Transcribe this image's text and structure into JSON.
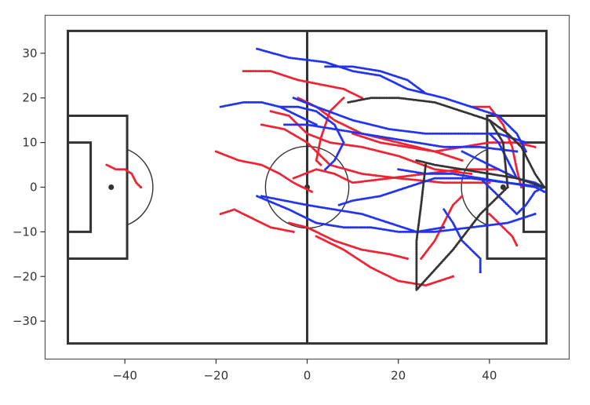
{
  "chart_data": {
    "type": "scatter",
    "title": "",
    "xlabel": "",
    "ylabel": "",
    "xlim": [
      -57.5,
      57.5
    ],
    "ylim": [
      -38.5,
      38.5
    ],
    "x_ticks": [
      -40,
      -20,
      0,
      20,
      40
    ],
    "y_ticks": [
      30,
      20,
      10,
      0,
      -10,
      -20,
      -30
    ],
    "x_tick_labels": [
      "−40",
      "−20",
      "0",
      "20",
      "40"
    ],
    "y_tick_labels": [
      "30",
      "20",
      "10",
      "0",
      "−10",
      "−20",
      "−30"
    ],
    "grid": false,
    "legend": "none",
    "pitch": {
      "length": 105,
      "width": 70,
      "penalty_area_depth": 13,
      "penalty_area_half_width": 16,
      "goal_area_depth": 5,
      "goal_area_half_width": 10,
      "center_circle_radius": 9.15,
      "penalty_spot_distance": 9.5,
      "line_color": "#333333"
    },
    "series": [
      {
        "color": "#ee2233",
        "marker": "dots",
        "tracks": [
          [
            [
              -44,
              5
            ],
            [
              -42,
              4
            ],
            [
              -40,
              4
            ],
            [
              -38.5,
              3
            ],
            [
              -37.5,
              1
            ],
            [
              -36.5,
              0
            ],
            [
              -36.5,
              0
            ]
          ],
          [
            [
              -20,
              8
            ],
            [
              -15,
              6
            ],
            [
              -10,
              5
            ],
            [
              -6,
              3
            ],
            [
              -3,
              1
            ],
            [
              1,
              -1
            ]
          ],
          [
            [
              -19,
              -6
            ],
            [
              -16,
              -5
            ],
            [
              -12,
              -7
            ],
            [
              -8,
              -9
            ],
            [
              -3,
              -10
            ]
          ],
          [
            [
              -14,
              26
            ],
            [
              -8,
              26
            ],
            [
              -2,
              24
            ],
            [
              3,
              23
            ],
            [
              8,
              22
            ],
            [
              12,
              20
            ]
          ],
          [
            [
              -2,
              20
            ],
            [
              2,
              18
            ],
            [
              6,
              15
            ],
            [
              12,
              12
            ],
            [
              20,
              10
            ],
            [
              28,
              8
            ],
            [
              34,
              6
            ]
          ],
          [
            [
              -8,
              17
            ],
            [
              -4,
              16
            ],
            [
              0,
              12
            ],
            [
              5,
              10
            ],
            [
              12,
              9
            ],
            [
              20,
              7
            ],
            [
              28,
              4
            ],
            [
              36,
              3
            ]
          ],
          [
            [
              -10,
              14
            ],
            [
              -5,
              13
            ],
            [
              0,
              10
            ],
            [
              5,
              5
            ],
            [
              12,
              3
            ],
            [
              20,
              2
            ],
            [
              30,
              1
            ],
            [
              40,
              1
            ]
          ],
          [
            [
              -3,
              2
            ],
            [
              2,
              4
            ],
            [
              6,
              3
            ],
            [
              10,
              1
            ],
            [
              18,
              2
            ],
            [
              26,
              3
            ],
            [
              34,
              4
            ],
            [
              42,
              4
            ]
          ],
          [
            [
              8,
              20
            ],
            [
              5,
              17
            ],
            [
              3,
              11
            ],
            [
              2,
              6
            ],
            [
              3,
              5
            ]
          ],
          [
            [
              2,
              -11
            ],
            [
              8,
              -14
            ],
            [
              14,
              -18
            ],
            [
              20,
              -21
            ],
            [
              26,
              -22
            ],
            [
              32,
              -20
            ]
          ],
          [
            [
              -4,
              -8
            ],
            [
              0,
              -9
            ],
            [
              6,
              -12
            ],
            [
              12,
              -14
            ],
            [
              18,
              -15
            ],
            [
              22,
              -16
            ]
          ],
          [
            [
              25,
              -16
            ],
            [
              28,
              -12
            ],
            [
              30,
              -8
            ],
            [
              32,
              -4
            ],
            [
              34,
              -2
            ]
          ],
          [
            [
              10,
              12
            ],
            [
              16,
              10
            ],
            [
              22,
              9
            ],
            [
              28,
              8
            ],
            [
              34,
              9
            ],
            [
              40,
              10
            ],
            [
              46,
              10
            ],
            [
              50,
              9
            ]
          ],
          [
            [
              36,
              18
            ],
            [
              40,
              18
            ],
            [
              43,
              14
            ],
            [
              45,
              9
            ],
            [
              46,
              4
            ],
            [
              47,
              0
            ]
          ],
          [
            [
              40,
              -6
            ],
            [
              43,
              -9
            ],
            [
              45,
              -11
            ],
            [
              46,
              -13
            ]
          ]
        ]
      },
      {
        "color": "#2233ee",
        "marker": "dots",
        "tracks": [
          [
            [
              -11,
              31
            ],
            [
              -4,
              29
            ],
            [
              4,
              28
            ],
            [
              10,
              26
            ],
            [
              16,
              25
            ],
            [
              22,
              22
            ],
            [
              26,
              21
            ]
          ],
          [
            [
              4,
              27
            ],
            [
              10,
              27
            ],
            [
              16,
              26
            ],
            [
              22,
              24
            ],
            [
              26,
              21
            ],
            [
              30,
              20
            ],
            [
              36,
              18
            ],
            [
              42,
              16
            ],
            [
              46,
              12
            ],
            [
              48,
              8
            ]
          ],
          [
            [
              -19,
              18
            ],
            [
              -14,
              19
            ],
            [
              -10,
              19
            ],
            [
              -6,
              18
            ],
            [
              -2,
              16
            ],
            [
              2,
              14
            ]
          ],
          [
            [
              -6,
              18
            ],
            [
              -2,
              18
            ],
            [
              2,
              17
            ],
            [
              6,
              14
            ],
            [
              8,
              10
            ],
            [
              6,
              6
            ],
            [
              4,
              4
            ]
          ],
          [
            [
              -3,
              20
            ],
            [
              2,
              18
            ],
            [
              10,
              15
            ],
            [
              18,
              13
            ],
            [
              26,
              12
            ],
            [
              34,
              12
            ],
            [
              42,
              12
            ],
            [
              48,
              10
            ]
          ],
          [
            [
              -5,
              14
            ],
            [
              0,
              14
            ],
            [
              6,
              13
            ],
            [
              12,
              12
            ],
            [
              18,
              11
            ],
            [
              24,
              10
            ],
            [
              30,
              9
            ],
            [
              38,
              9
            ],
            [
              46,
              8
            ]
          ],
          [
            [
              -10,
              -2
            ],
            [
              -5,
              -3
            ],
            [
              0,
              -4
            ],
            [
              6,
              -5
            ],
            [
              12,
              -6
            ],
            [
              18,
              -8
            ],
            [
              24,
              -10
            ],
            [
              30,
              -9
            ]
          ],
          [
            [
              -11,
              -2
            ],
            [
              -4,
              -5
            ],
            [
              2,
              -8
            ],
            [
              8,
              -9
            ],
            [
              14,
              -9
            ],
            [
              20,
              -10
            ],
            [
              28,
              -10
            ],
            [
              36,
              -9
            ],
            [
              44,
              -8
            ],
            [
              50,
              -6
            ]
          ],
          [
            [
              7,
              -4
            ],
            [
              10,
              -3
            ],
            [
              16,
              -2
            ],
            [
              22,
              0
            ],
            [
              28,
              2
            ],
            [
              36,
              2
            ],
            [
              44,
              1
            ],
            [
              52,
              0
            ]
          ],
          [
            [
              20,
              4
            ],
            [
              26,
              3
            ],
            [
              32,
              3
            ],
            [
              38,
              2
            ],
            [
              44,
              1
            ],
            [
              50,
              0
            ],
            [
              52,
              -1
            ]
          ],
          [
            [
              38,
              2
            ],
            [
              42,
              -2
            ],
            [
              44,
              -4
            ],
            [
              46,
              -6
            ],
            [
              48,
              -4
            ],
            [
              50,
              -1
            ],
            [
              52,
              0
            ]
          ],
          [
            [
              30,
              -5
            ],
            [
              32,
              -8
            ],
            [
              34,
              -12
            ],
            [
              36,
              -14
            ],
            [
              38,
              -16
            ],
            [
              38,
              -19
            ]
          ],
          [
            [
              34,
              8
            ],
            [
              38,
              6
            ],
            [
              42,
              4
            ],
            [
              46,
              2
            ],
            [
              50,
              1
            ],
            [
              52,
              0
            ]
          ],
          [
            [
              40,
              12
            ],
            [
              42,
              10
            ],
            [
              43,
              8
            ],
            [
              44,
              6
            ],
            [
              45,
              4
            ],
            [
              46,
              2
            ]
          ]
        ]
      },
      {
        "color": "#333333",
        "marker": "dots",
        "tracks": [
          [
            [
              9,
              19
            ],
            [
              14,
              20
            ],
            [
              20,
              20
            ],
            [
              28,
              19
            ],
            [
              34,
              17
            ],
            [
              40,
              15
            ],
            [
              44,
              12
            ],
            [
              47,
              9
            ],
            [
              50,
              3
            ],
            [
              52,
              0
            ]
          ],
          [
            [
              24,
              6
            ],
            [
              28,
              5
            ],
            [
              34,
              4
            ],
            [
              40,
              3
            ],
            [
              46,
              2
            ],
            [
              52,
              0
            ]
          ],
          [
            [
              26,
              5
            ],
            [
              25,
              -4
            ],
            [
              24,
              -12
            ],
            [
              24,
              -23
            ],
            [
              32,
              -14
            ],
            [
              38,
              -6
            ],
            [
              42,
              -2
            ],
            [
              44,
              0
            ]
          ],
          [
            [
              44,
              0
            ],
            [
              43,
              10
            ],
            [
              40,
              15
            ]
          ]
        ]
      }
    ]
  }
}
